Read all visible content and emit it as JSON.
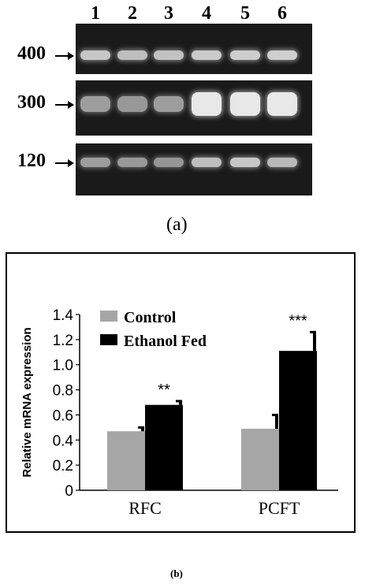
{
  "gel": {
    "lanes": [
      "1",
      "2",
      "3",
      "4",
      "5",
      "6"
    ],
    "rows": [
      {
        "marker": "400",
        "intensities": [
          0.75,
          0.7,
          0.72,
          0.78,
          0.8,
          0.82
        ]
      },
      {
        "marker": "300",
        "intensities": [
          0.45,
          0.4,
          0.45,
          1.0,
          1.0,
          1.0
        ]
      },
      {
        "marker": "120",
        "intensities": [
          0.45,
          0.4,
          0.38,
          0.7,
          0.75,
          0.65
        ]
      }
    ],
    "caption": "(a)"
  },
  "chart_data": {
    "type": "bar",
    "categories": [
      "RFC",
      "PCFT"
    ],
    "series": [
      {
        "name": "Control",
        "values": [
          0.47,
          0.49
        ],
        "errors": [
          0.03,
          0.11
        ],
        "color": "#a6a6a6"
      },
      {
        "name": "Ethanol Fed",
        "values": [
          0.68,
          1.11
        ],
        "errors": [
          0.03,
          0.15
        ],
        "color": "#000000"
      }
    ],
    "significance": [
      "**",
      "***"
    ],
    "ylabel": "Relative mRNA expression",
    "xlabel": "",
    "ylim": [
      0,
      1.4
    ],
    "yticks": [
      "0",
      "0.2",
      "0.4",
      "0.6",
      "0.8",
      "1.0",
      "1.2",
      "1.4"
    ],
    "legend_position": "top-left",
    "grid": false
  },
  "caption_b": "(b)"
}
